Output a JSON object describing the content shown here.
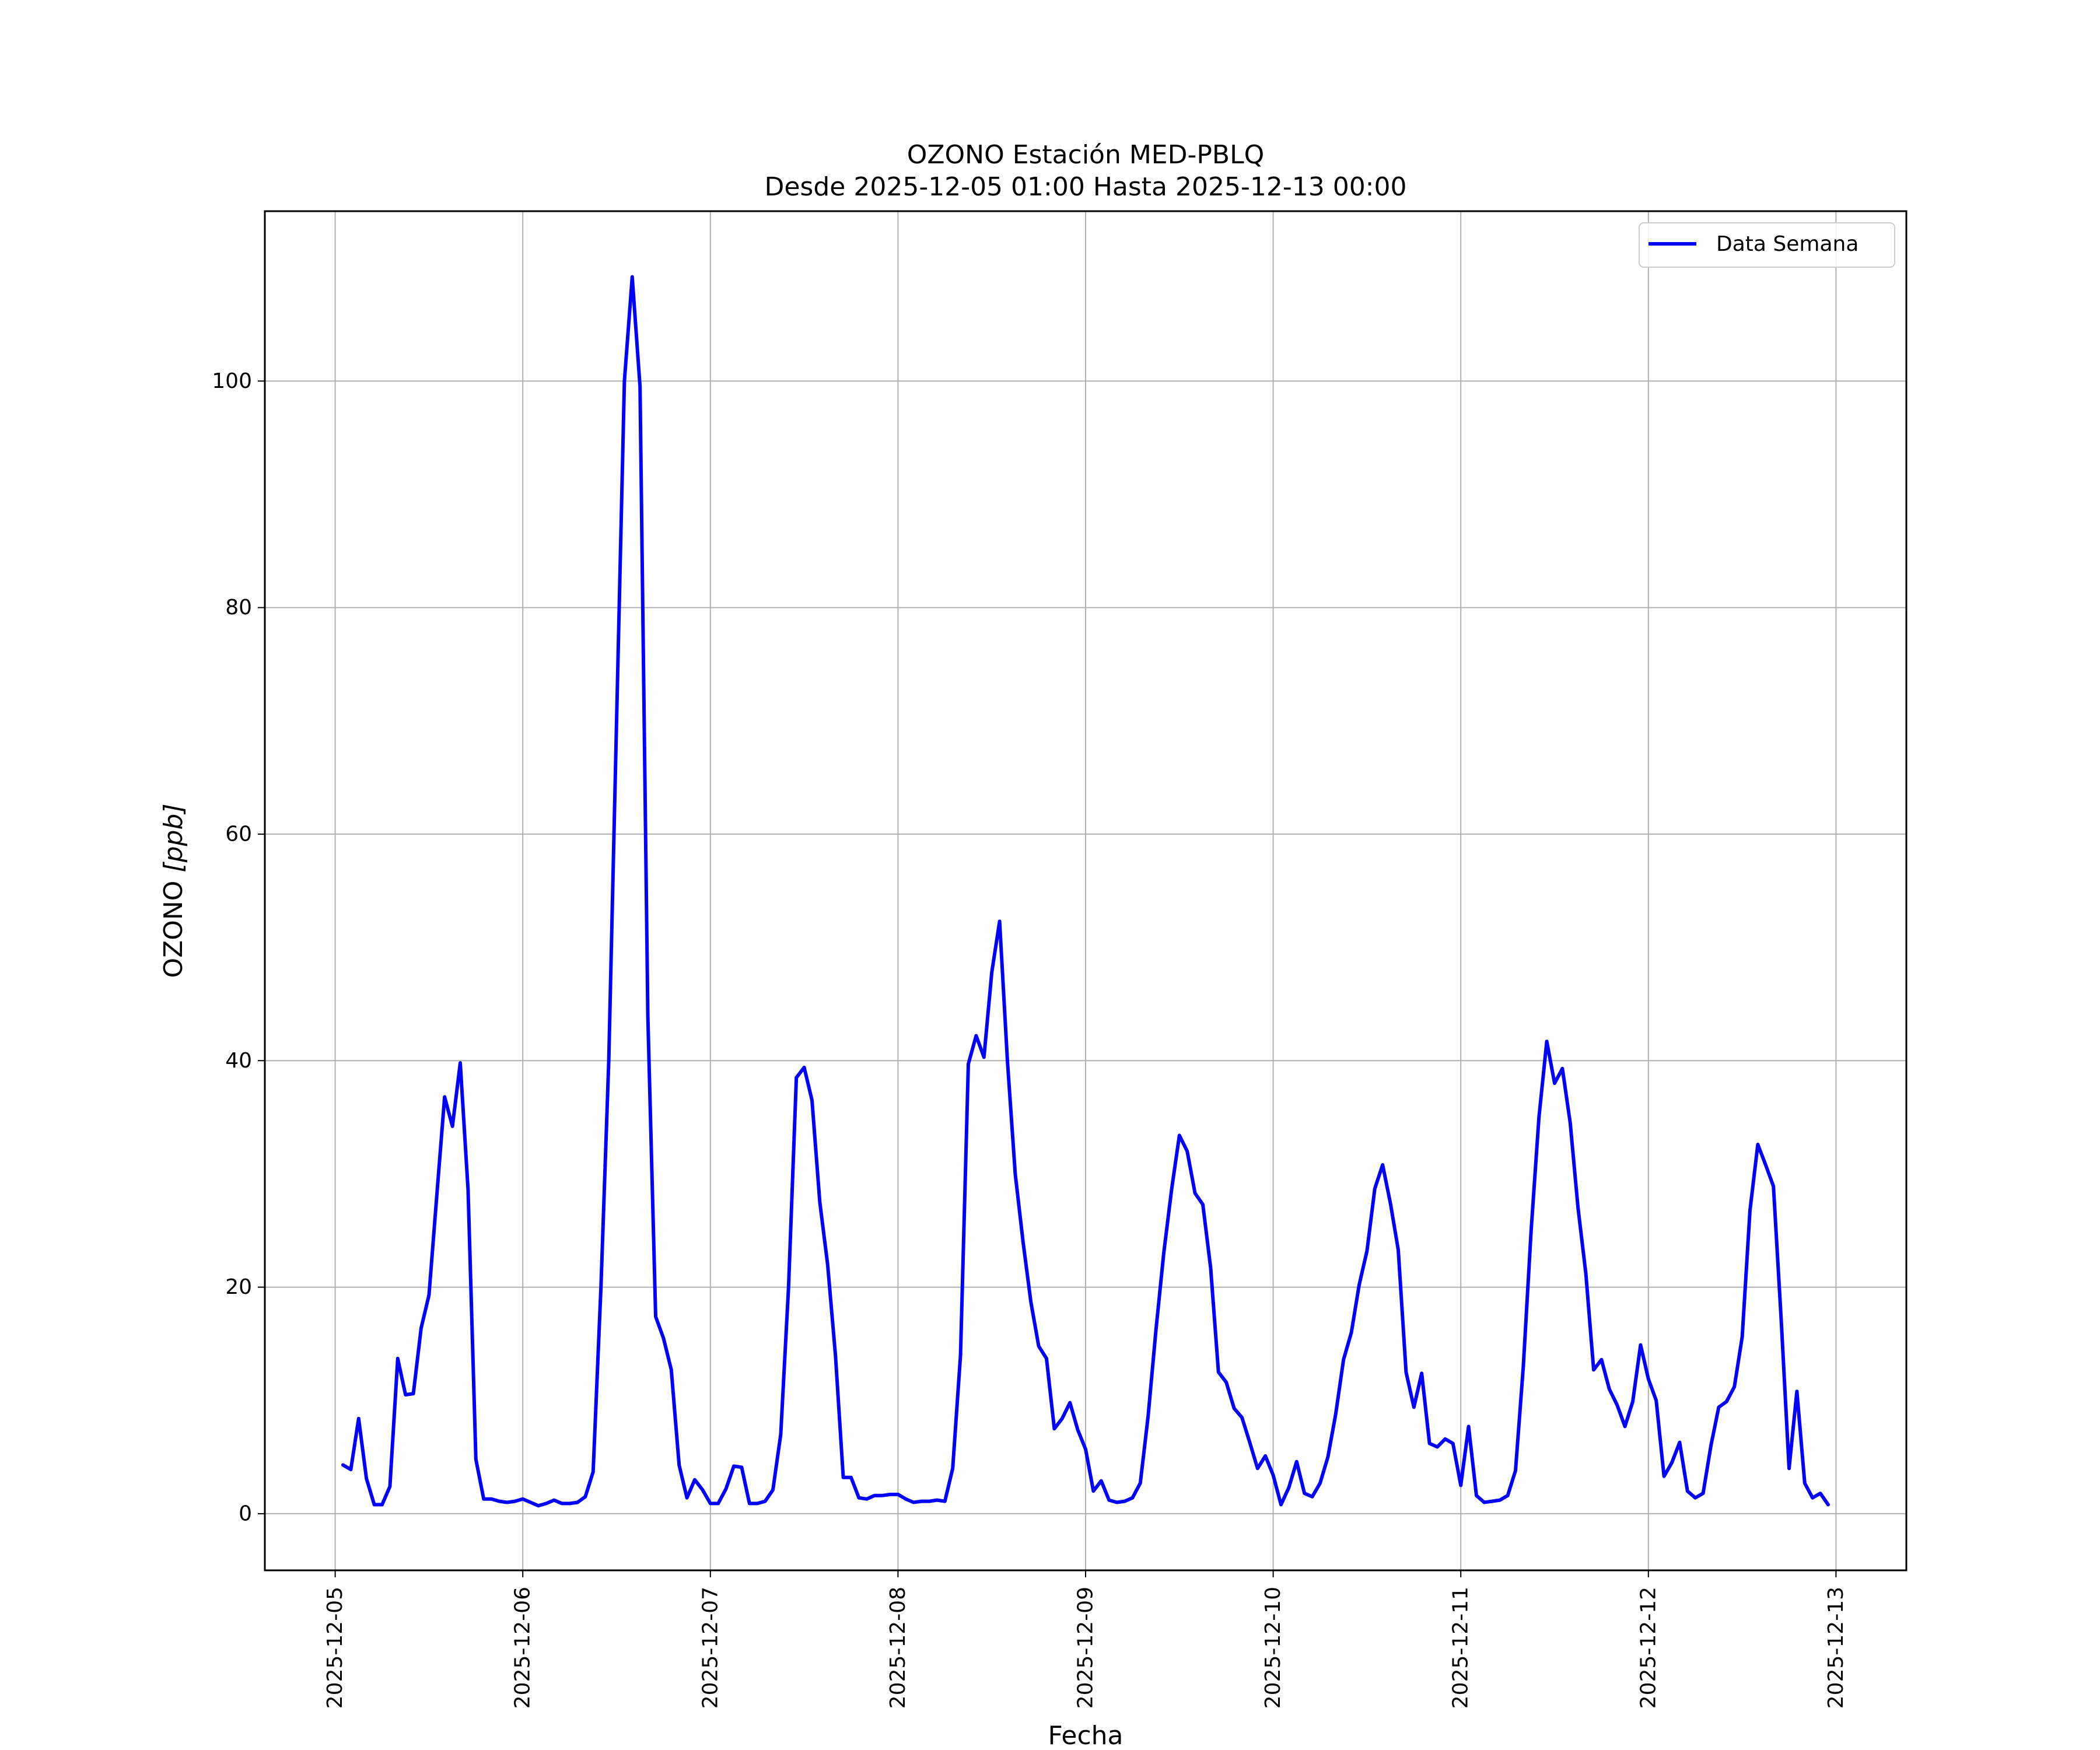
{
  "chart_data": {
    "type": "line",
    "title": "OZONO Estación MED-PBLQ",
    "subtitle": "Desde 2025-12-05 01:00 Hasta 2025-12-13 00:00",
    "xlabel": "Fecha",
    "ylabel": "OZONO [ppb]",
    "ylabel_prefix": "OZONO ",
    "ylabel_unit": "[ppb]",
    "xlim": [
      "2025-12-04 15:00",
      "2025-12-13 09:00"
    ],
    "ylim": [
      -5,
      115
    ],
    "x_ticks": [
      "2025-12-05",
      "2025-12-06",
      "2025-12-07",
      "2025-12-08",
      "2025-12-09",
      "2025-12-10",
      "2025-12-11",
      "2025-12-12",
      "2025-12-13"
    ],
    "y_ticks": [
      0,
      20,
      40,
      60,
      80,
      100
    ],
    "grid": true,
    "legend_position": "top-right",
    "series": [
      {
        "name": "Data Semana",
        "color": "#0000ff",
        "x_start": "2025-12-05 01:00",
        "x_step_hours": 1,
        "values": [
          4.3,
          3.9,
          8.4,
          3.1,
          0.8,
          0.8,
          2.4,
          13.7,
          10.5,
          10.6,
          16.4,
          19.3,
          28.1,
          36.8,
          34.2,
          39.8,
          28.6,
          4.8,
          1.3,
          1.3,
          1.1,
          1.0,
          1.1,
          1.3,
          1.0,
          0.7,
          0.9,
          1.2,
          0.9,
          0.9,
          1.0,
          1.5,
          3.7,
          20.0,
          40.0,
          70.0,
          100.0,
          109.2,
          99.5,
          43.9,
          17.4,
          15.5,
          12.7,
          4.3,
          1.4,
          3.0,
          2.1,
          0.9,
          0.9,
          2.2,
          4.2,
          4.1,
          0.9,
          0.9,
          1.1,
          2.1,
          7.0,
          20.0,
          38.5,
          39.4,
          36.5,
          27.5,
          22.0,
          14.0,
          3.2,
          3.2,
          1.4,
          1.3,
          1.6,
          1.6,
          1.7,
          1.7,
          1.3,
          1.0,
          1.1,
          1.1,
          1.2,
          1.1,
          4.0,
          14.0,
          39.7,
          42.2,
          40.3,
          47.8,
          52.3,
          40.0,
          30.0,
          24.0,
          18.7,
          14.8,
          13.7,
          7.5,
          8.4,
          9.8,
          7.4,
          5.7,
          2.0,
          2.9,
          1.2,
          1.0,
          1.1,
          1.4,
          2.7,
          8.6,
          16.2,
          23.0,
          28.6,
          33.4,
          32.0,
          28.3,
          27.3,
          21.7,
          12.5,
          11.6,
          9.3,
          8.5,
          6.3,
          4.0,
          5.1,
          3.4,
          0.8,
          2.3,
          4.6,
          1.8,
          1.5,
          2.7,
          5.0,
          8.8,
          13.6,
          16.0,
          20.2,
          23.2,
          28.7,
          30.8,
          27.4,
          23.3,
          12.5,
          9.4,
          12.4,
          6.2,
          5.9,
          6.6,
          6.2,
          2.5,
          7.7,
          1.6,
          1.0,
          1.1,
          1.2,
          1.6,
          3.8,
          13.0,
          25.0,
          35.0,
          41.7,
          38.0,
          39.3,
          34.5,
          27.0,
          21.2,
          12.7,
          13.6,
          11.0,
          9.6,
          7.7,
          9.9,
          14.9,
          11.9,
          10.0,
          3.3,
          4.5,
          6.3,
          2.0,
          1.4,
          1.8,
          6.0,
          9.4,
          9.9,
          11.2,
          15.6,
          26.8,
          32.6,
          30.8,
          28.9,
          17.0,
          4.0,
          10.8,
          2.7,
          1.4,
          1.8,
          0.8
        ]
      }
    ]
  }
}
